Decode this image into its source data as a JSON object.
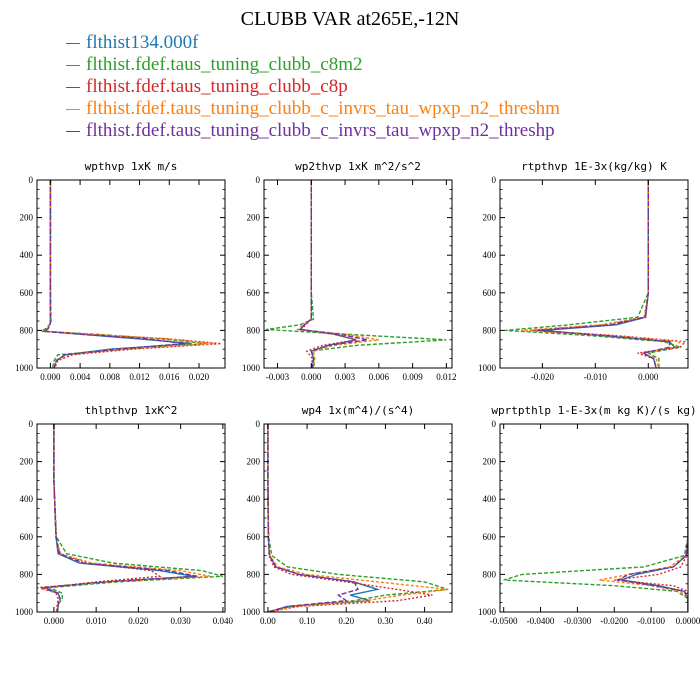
{
  "title": "CLUBB VAR at265E,-12N",
  "legend": [
    {
      "label": "flthist134.000f",
      "color": "#1f77b4",
      "dash": ""
    },
    {
      "label": "flthist.fdef.taus_tuning_clubb_c8m2",
      "color": "#2ca02c",
      "dash": "4,2"
    },
    {
      "label": "flthist.fdef.taus_tuning_clubb_c8p",
      "color": "#d62728",
      "dash": "2,2"
    },
    {
      "label": "flthist.fdef.taus_tuning_clubb_c_invrs_tau_wpxp_n2_threshm",
      "color": "#ff7f0e",
      "dash": "3,2"
    },
    {
      "label": "flthist.fdef.taus_tuning_clubb_c_invrs_tau_wpxp_n2_threshp",
      "color": "#7030a0",
      "dash": "5,2"
    }
  ],
  "chart_data": [
    {
      "type": "line",
      "title": "wpthvp  1xK m/s",
      "xlim": [
        -0.0018,
        0.0235
      ],
      "ylim": [
        0,
        1000
      ],
      "y_inverted": true,
      "xticks": [
        0.0,
        0.004,
        0.008,
        0.012,
        0.016,
        0.02
      ],
      "xtick_labels": [
        "0.000",
        "0.004",
        "0.008",
        "0.012",
        "0.016",
        "0.020"
      ],
      "yticks": [
        0,
        200,
        400,
        600,
        800,
        1000
      ],
      "y": [
        0,
        300,
        600,
        760,
        790,
        805,
        820,
        845,
        870,
        900,
        930,
        960,
        1000
      ],
      "series": [
        {
          "values": [
            0.0,
            0.0,
            0.0,
            0.0,
            -0.0003,
            -0.0008,
            0.004,
            0.012,
            0.019,
            0.008,
            0.002,
            0.0008,
            0.0005
          ]
        },
        {
          "values": [
            0.0,
            0.0,
            0.0,
            0.0001,
            -0.0006,
            -0.0012,
            0.006,
            0.015,
            0.021,
            0.01,
            0.001,
            0.0005,
            0.0003
          ]
        },
        {
          "values": [
            0.0,
            0.0,
            0.0,
            0.0,
            -0.0003,
            -0.0008,
            0.005,
            0.016,
            0.023,
            0.011,
            0.003,
            0.001,
            0.0006
          ]
        },
        {
          "values": [
            0.0,
            0.0,
            0.0,
            0.0,
            -0.0003,
            -0.0009,
            0.005,
            0.016,
            0.022,
            0.009,
            0.0025,
            0.0008,
            0.0004
          ]
        },
        {
          "values": [
            0.0,
            0.0,
            0.0,
            0.0,
            -0.0003,
            -0.0008,
            0.004,
            0.013,
            0.018,
            0.009,
            0.002,
            0.0008,
            0.0005
          ]
        }
      ]
    },
    {
      "type": "line",
      "title": "wp2thvp  1xK m^2/s^2",
      "xlim": [
        -0.0042,
        0.0125
      ],
      "ylim": [
        0,
        1000
      ],
      "y_inverted": true,
      "xticks": [
        -0.003,
        0.0,
        0.003,
        0.006,
        0.009,
        0.012
      ],
      "xtick_labels": [
        "-0.003",
        "0.000",
        "0.003",
        "0.006",
        "0.009",
        "0.012"
      ],
      "yticks": [
        0,
        200,
        400,
        600,
        800,
        1000
      ],
      "y": [
        0,
        300,
        600,
        740,
        770,
        795,
        820,
        850,
        880,
        910,
        950,
        1000
      ],
      "series": [
        {
          "values": [
            0.0,
            0.0,
            0.0,
            0.0,
            -0.0006,
            -0.001,
            0.002,
            0.004,
            0.0015,
            0.0,
            0.0002,
            0.0001
          ]
        },
        {
          "values": [
            0.0,
            0.0,
            0.0,
            0.0002,
            -0.001,
            -0.004,
            0.003,
            0.012,
            0.004,
            0.0,
            0.0003,
            0.0002
          ]
        },
        {
          "values": [
            0.0,
            0.0,
            0.0,
            0.0,
            -0.0005,
            -0.0009,
            0.002,
            0.004,
            0.001,
            -0.0004,
            0.0001,
            0.0
          ]
        },
        {
          "values": [
            0.0,
            0.0,
            0.0,
            0.0,
            -0.0007,
            -0.0012,
            0.003,
            0.006,
            0.002,
            0.0002,
            0.0003,
            0.0001
          ]
        },
        {
          "values": [
            0.0,
            0.0,
            0.0,
            0.0,
            -0.0006,
            -0.001,
            0.0025,
            0.005,
            0.0015,
            0.0,
            0.0002,
            0.0001
          ]
        }
      ]
    },
    {
      "type": "line",
      "title": "rtpthvp  1E-3x(kg/kg) K",
      "xlim": [
        -0.028,
        0.0075
      ],
      "ylim": [
        0,
        1000
      ],
      "y_inverted": true,
      "xticks": [
        -0.02,
        -0.01,
        0.0
      ],
      "xtick_labels": [
        "-0.020",
        "-0.010",
        "0.000"
      ],
      "yticks": [
        0,
        200,
        400,
        600,
        800,
        1000
      ],
      "y": [
        0,
        300,
        600,
        730,
        770,
        800,
        830,
        860,
        890,
        920,
        950,
        1000
      ],
      "series": [
        {
          "values": [
            0.0,
            0.0,
            0.0,
            -0.0005,
            -0.006,
            -0.02,
            -0.008,
            0.004,
            0.005,
            -0.001,
            0.001,
            0.0015
          ]
        },
        {
          "values": [
            0.0,
            0.0,
            0.0,
            -0.002,
            -0.015,
            -0.027,
            -0.01,
            0.003,
            0.006,
            0.0,
            0.002,
            0.002
          ]
        },
        {
          "values": [
            0.0,
            0.0,
            0.0,
            -0.0005,
            -0.008,
            -0.022,
            -0.005,
            0.007,
            0.006,
            -0.002,
            0.001,
            0.0015
          ]
        },
        {
          "values": [
            0.0,
            0.0,
            0.0,
            -0.0008,
            -0.009,
            -0.024,
            -0.006,
            0.006,
            0.005,
            -0.001,
            0.0015,
            0.002
          ]
        },
        {
          "values": [
            0.0,
            0.0,
            0.0,
            -0.0006,
            -0.007,
            -0.021,
            -0.007,
            0.004,
            0.004,
            -0.001,
            0.001,
            0.0015
          ]
        }
      ]
    },
    {
      "type": "line",
      "title": "thlpthvp  1xK^2",
      "xlim": [
        -0.004,
        0.0405
      ],
      "ylim": [
        0,
        1000
      ],
      "y_inverted": true,
      "xticks": [
        0.0,
        0.01,
        0.02,
        0.03,
        0.04
      ],
      "xtick_labels": [
        "0.000",
        "0.010",
        "0.020",
        "0.030",
        "0.040"
      ],
      "yticks": [
        0,
        200,
        400,
        600,
        800,
        1000
      ],
      "y": [
        0,
        300,
        600,
        690,
        740,
        780,
        810,
        840,
        870,
        900,
        930,
        960,
        1000
      ],
      "series": [
        {
          "values": [
            0.0,
            0.0,
            0.0005,
            0.001,
            0.006,
            0.025,
            0.033,
            0.012,
            -0.002,
            0.001,
            0.0015,
            0.001,
            0.0008
          ]
        },
        {
          "values": [
            0.0,
            0.0,
            0.0006,
            0.003,
            0.014,
            0.035,
            0.04,
            0.015,
            -0.001,
            0.002,
            0.002,
            0.001,
            0.001
          ]
        },
        {
          "values": [
            0.0,
            0.0,
            0.0005,
            0.0015,
            0.008,
            0.023,
            0.025,
            0.01,
            -0.002,
            0.0005,
            0.001,
            0.0008,
            0.0006
          ]
        },
        {
          "values": [
            0.0,
            0.0,
            0.0005,
            0.0015,
            0.009,
            0.03,
            0.037,
            0.013,
            -0.004,
            0.001,
            0.0015,
            0.001,
            0.0008
          ]
        },
        {
          "values": [
            0.0,
            0.0,
            0.0005,
            0.0012,
            0.007,
            0.027,
            0.034,
            0.012,
            -0.003,
            0.001,
            0.0015,
            0.001,
            0.0008
          ]
        }
      ]
    },
    {
      "type": "line",
      "title": "wp4  1x(m^4)/(s^4)",
      "xlim": [
        -0.01,
        0.47
      ],
      "ylim": [
        0,
        1000
      ],
      "y_inverted": true,
      "xticks": [
        0.0,
        0.1,
        0.2,
        0.3,
        0.4
      ],
      "xtick_labels": [
        "0.00",
        "0.10",
        "0.20",
        "0.30",
        "0.40"
      ],
      "yticks": [
        0,
        200,
        400,
        600,
        800,
        1000
      ],
      "y": [
        0,
        300,
        600,
        700,
        760,
        800,
        840,
        880,
        910,
        940,
        970,
        1000
      ],
      "series": [
        {
          "values": [
            0.0,
            0.0,
            0.001,
            0.004,
            0.02,
            0.08,
            0.22,
            0.28,
            0.21,
            0.26,
            0.05,
            0.0
          ]
        },
        {
          "values": [
            0.0,
            0.0,
            0.002,
            0.01,
            0.05,
            0.18,
            0.4,
            0.46,
            0.3,
            0.22,
            0.06,
            0.0
          ]
        },
        {
          "values": [
            0.0,
            0.0,
            0.001,
            0.003,
            0.015,
            0.06,
            0.2,
            0.33,
            0.42,
            0.33,
            0.08,
            0.0
          ]
        },
        {
          "values": [
            0.0,
            0.0,
            0.001,
            0.005,
            0.025,
            0.1,
            0.28,
            0.46,
            0.34,
            0.25,
            0.07,
            0.0
          ]
        },
        {
          "values": [
            0.0,
            0.0,
            0.001,
            0.004,
            0.02,
            0.08,
            0.22,
            0.23,
            0.18,
            0.2,
            0.05,
            0.0
          ]
        }
      ]
    },
    {
      "type": "line",
      "title": "wprtpthlp  1-E-3x(m kg K)/(s kg)",
      "xlim": [
        -0.051,
        0.0
      ],
      "ylim": [
        0,
        1000
      ],
      "y_inverted": true,
      "xticks": [
        -0.05,
        -0.04,
        -0.03,
        -0.02,
        -0.01,
        0.0
      ],
      "xtick_labels": [
        "-0.0500",
        "-0.0400",
        "-0.0300",
        "-0.0200",
        "-0.0100",
        "0.0000"
      ],
      "yticks": [
        0,
        200,
        400,
        600,
        800,
        1000
      ],
      "y": [
        0,
        300,
        600,
        700,
        760,
        800,
        830,
        860,
        890,
        930,
        970,
        1000
      ],
      "series": [
        {
          "values": [
            0.0,
            0.0,
            0.0,
            -0.0005,
            -0.004,
            -0.014,
            -0.018,
            -0.008,
            -0.001,
            0.0,
            0.0,
            0.0
          ]
        },
        {
          "values": [
            0.0,
            0.0,
            0.0,
            -0.001,
            -0.012,
            -0.045,
            -0.05,
            -0.02,
            -0.003,
            0.0,
            0.0,
            0.0
          ]
        },
        {
          "values": [
            0.0,
            0.0,
            0.0,
            -0.0003,
            -0.002,
            -0.008,
            -0.02,
            -0.004,
            0.0,
            0.0,
            0.0,
            0.0
          ]
        },
        {
          "values": [
            0.0,
            0.0,
            0.0,
            -0.0006,
            -0.005,
            -0.016,
            -0.024,
            -0.01,
            -0.002,
            0.0,
            0.0,
            0.0
          ]
        },
        {
          "values": [
            0.0,
            0.0,
            0.0,
            -0.0005,
            -0.004,
            -0.016,
            -0.019,
            -0.009,
            -0.001,
            0.0,
            0.0,
            0.0
          ]
        }
      ]
    }
  ]
}
